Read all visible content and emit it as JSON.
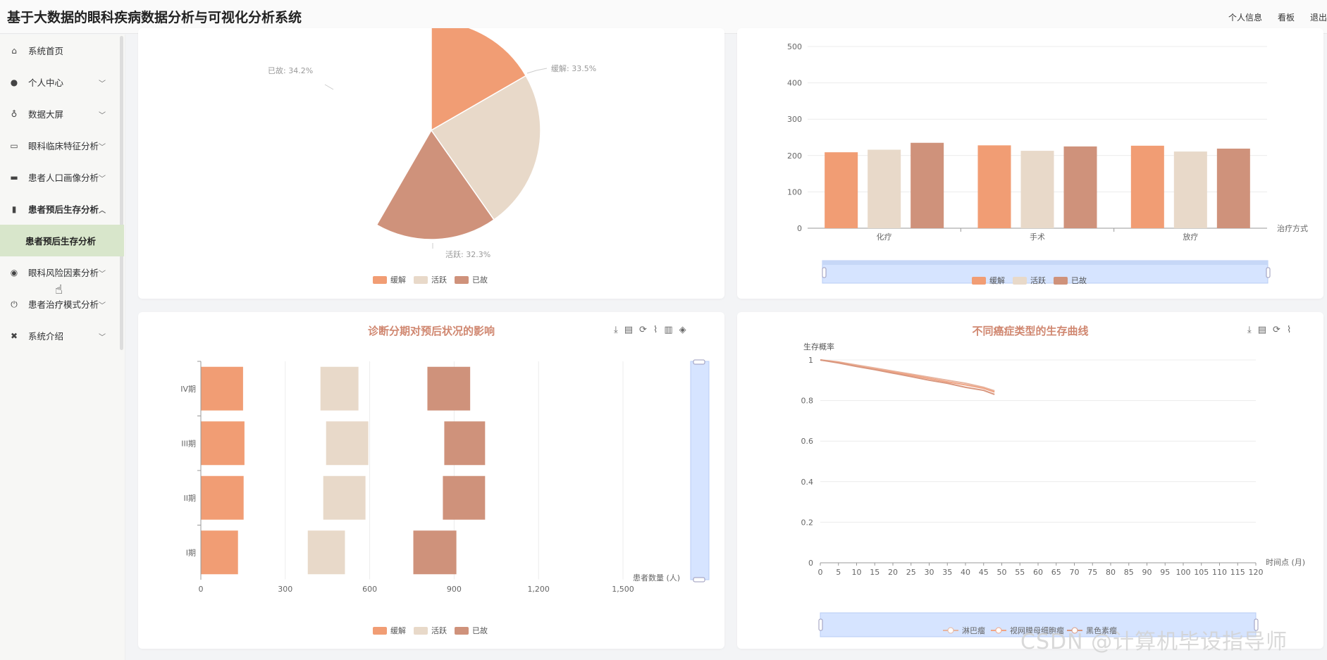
{
  "header": {
    "title": "基于大数据的眼科疾病数据分析与可视化分析系统",
    "links": [
      "个人信息",
      "看板",
      "退出"
    ]
  },
  "sidebar": {
    "items": [
      {
        "label": "系统首页",
        "icon": "home-icon",
        "chevron": false
      },
      {
        "label": "个人中心",
        "icon": "user-icon",
        "chevron": true
      },
      {
        "label": "数据大屏",
        "icon": "microphone-icon",
        "chevron": true
      },
      {
        "label": "眼科临床特征分析",
        "icon": "id-card-icon",
        "chevron": true
      },
      {
        "label": "患者人口画像分析",
        "icon": "briefcase-icon",
        "chevron": true
      },
      {
        "label": "患者预后生存分析",
        "icon": "clipboard-icon",
        "chevron": true,
        "expanded": true
      },
      {
        "label": "眼科风险因素分析",
        "icon": "bulb-icon",
        "chevron": true
      },
      {
        "label": "患者治疗模式分析",
        "icon": "power-icon",
        "chevron": true
      },
      {
        "label": "系统介绍",
        "icon": "film-icon",
        "chevron": true
      }
    ],
    "active_sub": "患者预后生存分析"
  },
  "colors": {
    "remission": "#f19d74",
    "active": "#e8d9c9",
    "deceased": "#cf927b",
    "title": "#d08770",
    "zoom": "#d6e4ff"
  },
  "charts": {
    "stage_title": "诊断分期对预后状况的影响",
    "survival_title": "不同癌症类型的生存曲线"
  },
  "chart_data": [
    {
      "type": "pie",
      "title": "",
      "slices": [
        {
          "name": "缓解",
          "value": 33.5,
          "label": "缓解: 33.5%"
        },
        {
          "name": "活跃",
          "value": 32.3,
          "label": "活跃: 32.3%"
        },
        {
          "name": "已故",
          "value": 34.2,
          "label": "已故: 34.2%"
        }
      ],
      "legend": [
        "缓解",
        "活跃",
        "已故"
      ]
    },
    {
      "type": "bar",
      "xlabel": "治疗方式",
      "categories": [
        "化疗",
        "手术",
        "放疗"
      ],
      "ylim": [
        0,
        500
      ],
      "yticks": [
        0,
        100,
        200,
        300,
        400,
        500
      ],
      "series": [
        {
          "name": "缓解",
          "values": [
            209,
            228,
            227
          ]
        },
        {
          "name": "活跃",
          "values": [
            216,
            213,
            211
          ]
        },
        {
          "name": "已故",
          "values": [
            235,
            225,
            219
          ]
        }
      ],
      "legend": [
        "缓解",
        "活跃",
        "已故"
      ]
    },
    {
      "type": "bar",
      "orientation": "horizontal",
      "title": "诊断分期对预后状况的影响",
      "xlabel": "患者数量 (人)",
      "categories": [
        "IV期",
        "III期",
        "II期",
        "I期"
      ],
      "xlim": [
        0,
        1500
      ],
      "xticks": [
        "0",
        "300",
        "600",
        "900",
        "1,200",
        "1,500"
      ],
      "series": [
        {
          "name": "缓解",
          "values": [
            150,
            155,
            152,
            132
          ]
        },
        {
          "name": "活跃",
          "values": [
            135,
            150,
            150,
            132
          ]
        },
        {
          "name": "已故",
          "values": [
            152,
            145,
            150,
            153
          ]
        }
      ],
      "legend": [
        "缓解",
        "活跃",
        "已故"
      ]
    },
    {
      "type": "line",
      "title": "不同癌症类型的生存曲线",
      "ylabel": "生存概率",
      "xlabel": "时间点 (月)",
      "ylim": [
        0,
        1
      ],
      "yticks": [
        "0",
        "0.2",
        "0.4",
        "0.6",
        "0.8",
        "1"
      ],
      "xticks": [
        "0",
        "5",
        "10",
        "15",
        "20",
        "25",
        "30",
        "35",
        "40",
        "45",
        "50",
        "55",
        "60",
        "65",
        "70",
        "75",
        "80",
        "85",
        "90",
        "95",
        "100",
        "105",
        "110",
        "115",
        "120"
      ],
      "series": [
        {
          "name": "淋巴瘤",
          "x": [
            0,
            5,
            10,
            15,
            20,
            25,
            30,
            35,
            40,
            45,
            48
          ],
          "y": [
            1,
            0.99,
            0.975,
            0.96,
            0.945,
            0.93,
            0.915,
            0.9,
            0.885,
            0.865,
            0.848
          ]
        },
        {
          "name": "视网膜母细胞瘤",
          "x": [
            0,
            5,
            10,
            15,
            20,
            25,
            30,
            35,
            40,
            45,
            48
          ],
          "y": [
            1,
            0.988,
            0.97,
            0.955,
            0.94,
            0.925,
            0.908,
            0.892,
            0.877,
            0.86,
            0.842
          ]
        },
        {
          "name": "黑色素瘤",
          "x": [
            0,
            5,
            10,
            15,
            20,
            25,
            30,
            35,
            40,
            45,
            48
          ],
          "y": [
            1,
            0.985,
            0.968,
            0.952,
            0.935,
            0.918,
            0.9,
            0.885,
            0.865,
            0.85,
            0.83
          ]
        }
      ],
      "legend": [
        "淋巴瘤",
        "视网膜母细胞瘤",
        "黑色素瘤"
      ]
    }
  ],
  "watermark": "CSDN @计算机毕设指导师"
}
